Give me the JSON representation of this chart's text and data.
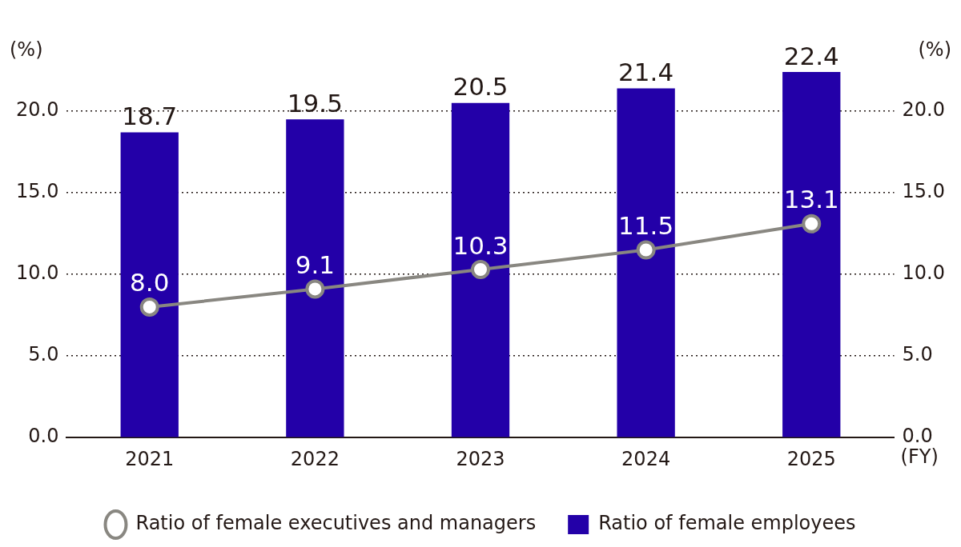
{
  "chart_data": {
    "type": "bar",
    "categories": [
      "2021",
      "2022",
      "2023",
      "2024",
      "2025"
    ],
    "xlabel": "(FY)",
    "ylabel": "(%)",
    "y2label": "(%)",
    "series": [
      {
        "name": "Ratio of female employees",
        "color": "#2300a8",
        "values": [
          18.7,
          19.5,
          20.5,
          21.4,
          22.4
        ],
        "value_labels": [
          "18.7",
          "19.5",
          "20.5",
          "21.4",
          "22.4"
        ]
      },
      {
        "name": "Ratio of female executives and managers",
        "type": "line",
        "color": "#898781",
        "marker": "circle",
        "values": [
          8.0,
          9.1,
          10.3,
          11.5,
          13.1
        ],
        "value_labels": [
          "8.0",
          "9.1",
          "10.3",
          "11.5",
          "13.1"
        ]
      }
    ],
    "ylim": [
      0,
      22.4
    ],
    "yticks": [
      {
        "value": 0,
        "label": "0.0"
      },
      {
        "value": 5,
        "label": "5.0"
      },
      {
        "value": 10,
        "label": "10.0"
      },
      {
        "value": 15,
        "label": "15.0"
      },
      {
        "value": 20,
        "label": "20.0"
      }
    ],
    "y2lim": [
      0,
      22.4
    ],
    "y2ticks": [
      {
        "value": 0,
        "label": "0.0"
      },
      {
        "value": 5,
        "label": "5.0"
      },
      {
        "value": 10,
        "label": "10.0"
      },
      {
        "value": 15,
        "label": "15.0"
      },
      {
        "value": 20,
        "label": "20.0"
      }
    ],
    "grid": "y",
    "line_style": "solid",
    "legend": "bottom"
  }
}
